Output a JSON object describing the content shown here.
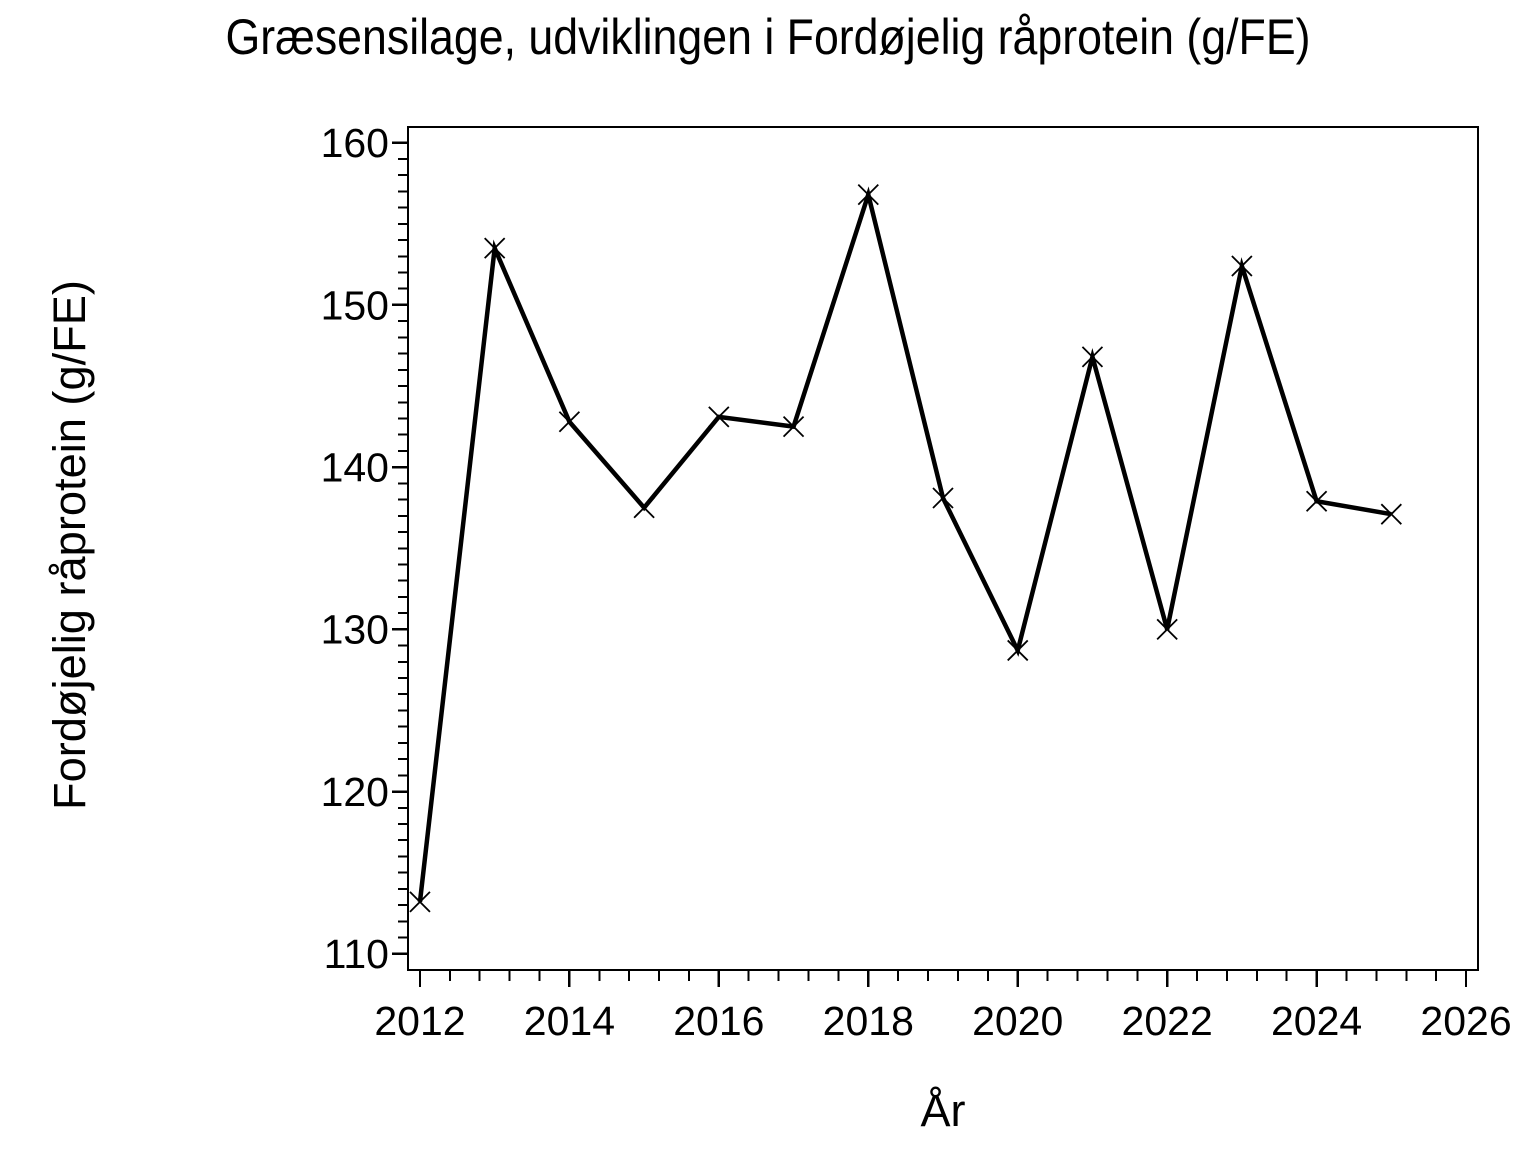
{
  "page": {
    "background": "#ffffff",
    "foreground": "#000000"
  },
  "chart_data": {
    "type": "line",
    "title": "Græsensilage, udviklingen i Fordøjelig råprotein (g/FE)",
    "xlabel": "År",
    "ylabel": "Fordøjelig råprotein (g/FE)",
    "x": [
      2012,
      2013,
      2014,
      2015,
      2016,
      2017,
      2018,
      2019,
      2020,
      2021,
      2022,
      2023,
      2024,
      2025
    ],
    "values": [
      113.2,
      153.5,
      142.8,
      137.5,
      143.1,
      142.5,
      156.8,
      138.1,
      128.7,
      146.8,
      130.0,
      152.4,
      137.9,
      137.1
    ],
    "xlim": [
      2011.84,
      2026.16
    ],
    "ylim": [
      109.0,
      160.97
    ],
    "x_ticks": [
      2012,
      2014,
      2016,
      2018,
      2020,
      2022,
      2024,
      2026
    ],
    "y_ticks": [
      110,
      120,
      130,
      140,
      150,
      160
    ],
    "x_minor_step": 0.4,
    "y_minor_step": 1,
    "marker": "x",
    "line_color": "#000000",
    "grid": false,
    "legend": false
  }
}
